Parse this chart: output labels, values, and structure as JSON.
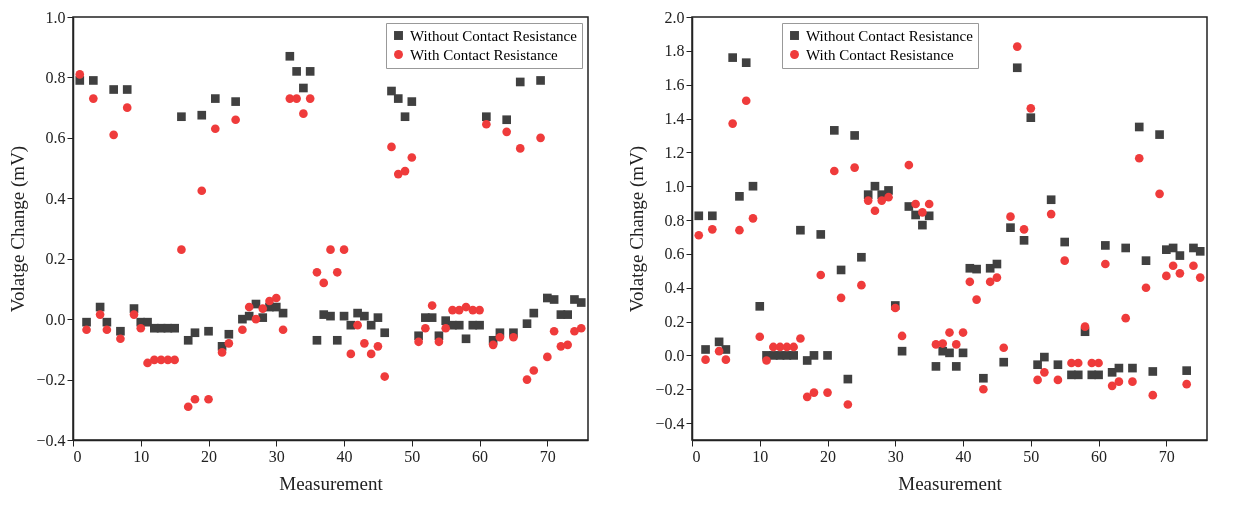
{
  "chart_data": [
    {
      "type": "scatter",
      "xlabel": "Measurement",
      "ylabel": "Volatge Change (mV)",
      "x": [
        1,
        2,
        3,
        4,
        5,
        6,
        7,
        8,
        9,
        10,
        11,
        12,
        13,
        14,
        15,
        16,
        17,
        18,
        19,
        20,
        21,
        22,
        23,
        24,
        25,
        26,
        27,
        28,
        29,
        30,
        31,
        32,
        33,
        34,
        35,
        36,
        37,
        38,
        39,
        40,
        41,
        42,
        43,
        44,
        45,
        46,
        47,
        48,
        49,
        50,
        51,
        52,
        53,
        54,
        55,
        56,
        57,
        58,
        59,
        60,
        61,
        62,
        63,
        64,
        65,
        66,
        67,
        68,
        69,
        70,
        71,
        72,
        73,
        74,
        75
      ],
      "xlim": [
        0,
        76
      ],
      "xticks": [
        0,
        10,
        20,
        30,
        40,
        50,
        60,
        70
      ],
      "ylim": [
        -0.4,
        1.0
      ],
      "yticks": [
        -0.4,
        -0.2,
        {
          "value": 0,
          "label": "0.0"
        },
        0.2,
        0.4,
        0.6,
        0.8,
        {
          "value": 1,
          "label": "1.0"
        }
      ],
      "grid": false,
      "legend": "top right",
      "series": [
        {
          "name": "Without Contact Resistance",
          "color": "#404040",
          "marker": "square",
          "values": [
            0.79,
            -0.01,
            0.79,
            0.04,
            -0.01,
            0.76,
            -0.04,
            0.76,
            0.035,
            -0.01,
            -0.01,
            -0.03,
            -0.03,
            -0.03,
            -0.03,
            0.67,
            -0.07,
            -0.045,
            0.675,
            -0.04,
            0.73,
            -0.09,
            -0.05,
            0.72,
            0.0,
            0.01,
            0.05,
            0.005,
            0.04,
            0.04,
            0.02,
            0.87,
            0.82,
            0.765,
            0.82,
            -0.07,
            0.015,
            0.01,
            -0.07,
            0.01,
            -0.02,
            0.02,
            0.01,
            -0.02,
            0.005,
            -0.045,
            0.755,
            0.73,
            0.67,
            0.72,
            -0.055,
            0.005,
            0.005,
            -0.055,
            -0.005,
            -0.02,
            -0.02,
            -0.065,
            -0.02,
            -0.02,
            0.67,
            -0.07,
            -0.045,
            0.66,
            -0.045,
            0.785,
            -0.015,
            0.02,
            0.79,
            0.07,
            0.065,
            0.015,
            0.015,
            0.065,
            0.055
          ]
        },
        {
          "name": "With Contact Resistance",
          "color": "#ef3b3b",
          "marker": "circle",
          "values": [
            0.81,
            -0.035,
            0.73,
            0.015,
            -0.035,
            0.61,
            -0.065,
            0.7,
            0.015,
            -0.03,
            -0.145,
            -0.135,
            -0.135,
            -0.135,
            -0.135,
            0.23,
            -0.29,
            -0.265,
            0.425,
            -0.265,
            0.63,
            -0.11,
            -0.08,
            0.66,
            -0.035,
            0.04,
            0.0,
            0.035,
            0.06,
            0.07,
            -0.035,
            0.73,
            0.73,
            0.68,
            0.73,
            0.155,
            0.12,
            0.23,
            0.155,
            0.23,
            -0.115,
            -0.02,
            -0.08,
            -0.115,
            -0.09,
            -0.19,
            0.57,
            0.48,
            0.49,
            0.535,
            -0.075,
            -0.03,
            0.045,
            -0.075,
            -0.03,
            0.03,
            0.03,
            0.04,
            0.03,
            0.03,
            0.645,
            -0.085,
            -0.06,
            0.62,
            -0.06,
            0.565,
            -0.2,
            -0.17,
            0.6,
            -0.125,
            -0.04,
            -0.09,
            -0.085,
            -0.04,
            -0.03
          ]
        }
      ]
    },
    {
      "type": "scatter",
      "xlabel": "Measurement",
      "ylabel": "Volatge Change (mV)",
      "x": [
        1,
        2,
        3,
        4,
        5,
        6,
        7,
        8,
        9,
        10,
        11,
        12,
        13,
        14,
        15,
        16,
        17,
        18,
        19,
        20,
        21,
        22,
        23,
        24,
        25,
        26,
        27,
        28,
        29,
        30,
        31,
        32,
        33,
        34,
        35,
        36,
        37,
        38,
        39,
        40,
        41,
        42,
        43,
        44,
        45,
        46,
        47,
        48,
        49,
        50,
        51,
        52,
        53,
        54,
        55,
        56,
        57,
        58,
        59,
        60,
        61,
        62,
        63,
        64,
        65,
        66,
        67,
        68,
        69,
        70,
        71,
        72,
        73,
        74,
        75
      ],
      "xlim": [
        0,
        76
      ],
      "xticks": [
        0,
        10,
        20,
        30,
        40,
        50,
        60,
        70
      ],
      "ylim": [
        -0.5,
        2.0
      ],
      "yticks": [
        -0.4,
        -0.2,
        {
          "value": 0,
          "label": "0.0"
        },
        0.2,
        0.4,
        0.6,
        0.8,
        {
          "value": 1,
          "label": "1.0"
        },
        1.2,
        1.4,
        1.6,
        1.8,
        {
          "value": 2,
          "label": "2.0"
        }
      ],
      "grid": false,
      "legend": "top",
      "series": [
        {
          "name": "Without Contact Resistance",
          "color": "#404040",
          "marker": "square",
          "values": [
            0.825,
            0.035,
            0.825,
            0.08,
            0.035,
            1.76,
            0.94,
            1.73,
            1.0,
            0.29,
            0.0,
            0.0,
            0.0,
            0.0,
            0.0,
            0.74,
            -0.03,
            0.0,
            0.715,
            0.0,
            1.33,
            0.505,
            -0.14,
            1.3,
            0.58,
            0.95,
            1.0,
            0.95,
            0.975,
            0.295,
            0.025,
            0.88,
            0.83,
            0.77,
            0.825,
            -0.065,
            0.025,
            0.015,
            -0.065,
            0.015,
            0.515,
            0.51,
            -0.135,
            0.515,
            0.54,
            -0.04,
            0.755,
            1.7,
            0.68,
            1.405,
            -0.055,
            -0.01,
            0.92,
            -0.055,
            0.67,
            -0.115,
            -0.115,
            0.14,
            -0.115,
            -0.115,
            0.65,
            -0.1,
            -0.075,
            0.635,
            -0.075,
            1.35,
            0.56,
            -0.095,
            1.305,
            0.625,
            0.635,
            0.59,
            -0.09,
            0.635,
            0.615
          ]
        },
        {
          "name": "With Contact Resistance",
          "color": "#ef3b3b",
          "marker": "circle",
          "values": [
            0.71,
            -0.025,
            0.745,
            0.025,
            -0.025,
            1.37,
            0.74,
            1.505,
            0.81,
            0.11,
            -0.03,
            0.05,
            0.05,
            0.05,
            0.05,
            0.1,
            -0.245,
            -0.22,
            0.475,
            -0.22,
            1.09,
            0.34,
            -0.29,
            1.11,
            0.415,
            0.915,
            0.855,
            0.915,
            0.935,
            0.28,
            0.115,
            1.125,
            0.895,
            0.845,
            0.895,
            0.065,
            0.07,
            0.135,
            0.065,
            0.135,
            0.435,
            0.33,
            -0.2,
            0.435,
            0.46,
            0.045,
            0.82,
            1.825,
            0.745,
            1.46,
            -0.145,
            -0.1,
            0.835,
            -0.145,
            0.56,
            -0.045,
            -0.045,
            0.17,
            -0.045,
            -0.045,
            0.54,
            -0.18,
            -0.155,
            0.22,
            -0.155,
            1.165,
            0.4,
            -0.235,
            0.955,
            0.47,
            0.53,
            0.485,
            -0.17,
            0.53,
            0.46
          ]
        }
      ]
    }
  ]
}
